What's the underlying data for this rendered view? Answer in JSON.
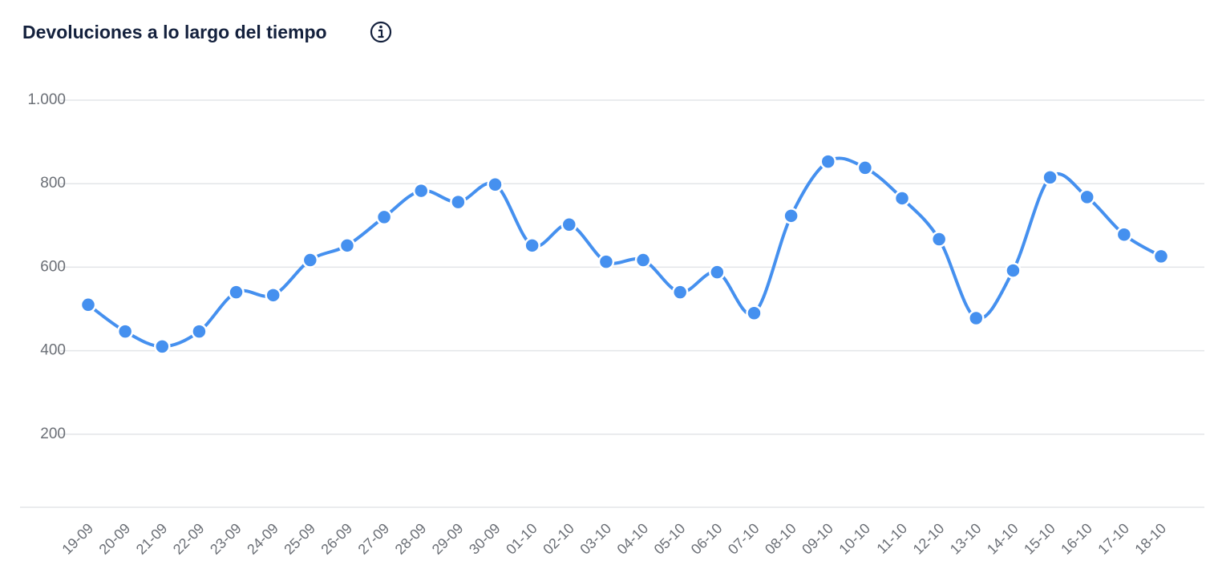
{
  "chart_data": {
    "type": "line",
    "title": "Devoluciones a lo largo del tiempo",
    "categories": [
      "19-09",
      "20-09",
      "21-09",
      "22-09",
      "23-09",
      "24-09",
      "25-09",
      "26-09",
      "27-09",
      "28-09",
      "29-09",
      "30-09",
      "01-10",
      "02-10",
      "03-10",
      "04-10",
      "05-10",
      "06-10",
      "07-10",
      "08-10",
      "09-10",
      "10-10",
      "11-10",
      "12-10",
      "13-10",
      "14-10",
      "15-10",
      "16-10",
      "17-10",
      "18-10"
    ],
    "series": [
      {
        "name": "Devoluciones",
        "color": "#4590ef",
        "values": [
          510,
          446,
          410,
          446,
          540,
          533,
          617,
          652,
          720,
          783,
          756,
          798,
          652,
          702,
          613,
          617,
          540,
          588,
          490,
          723,
          853,
          838,
          765,
          667,
          478,
          592,
          815,
          768,
          678,
          626
        ]
      }
    ],
    "ylim": [
      25,
      1000
    ],
    "yticks": [
      200,
      400,
      600,
      800,
      {
        "value": 1000,
        "label": "1.000"
      }
    ],
    "grid": true
  }
}
